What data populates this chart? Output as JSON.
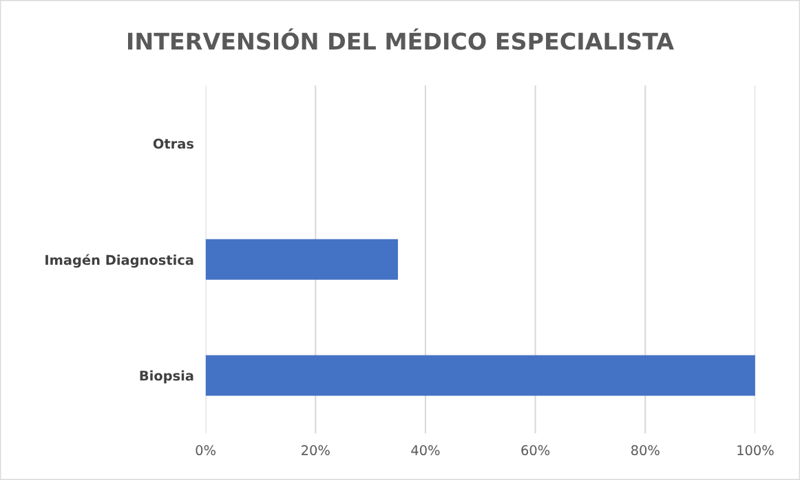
{
  "chart_data": {
    "type": "bar",
    "orientation": "horizontal",
    "title": "INTERVENSIÓN DEL MÉDICO ESPECIALISTA",
    "categories": [
      "Otras",
      "Imagén Diagnostica",
      "Biopsia"
    ],
    "values": [
      0,
      35,
      100
    ],
    "color": "#4472c4",
    "xlim": [
      0,
      100
    ],
    "xticks": [
      {
        "value": 0,
        "label": "0%"
      },
      {
        "value": 20,
        "label": "20%"
      },
      {
        "value": 40,
        "label": "40%"
      },
      {
        "value": 60,
        "label": "60%"
      },
      {
        "value": 80,
        "label": "80%"
      },
      {
        "value": 100,
        "label": "100%"
      }
    ],
    "grid": "x",
    "legend": false
  }
}
